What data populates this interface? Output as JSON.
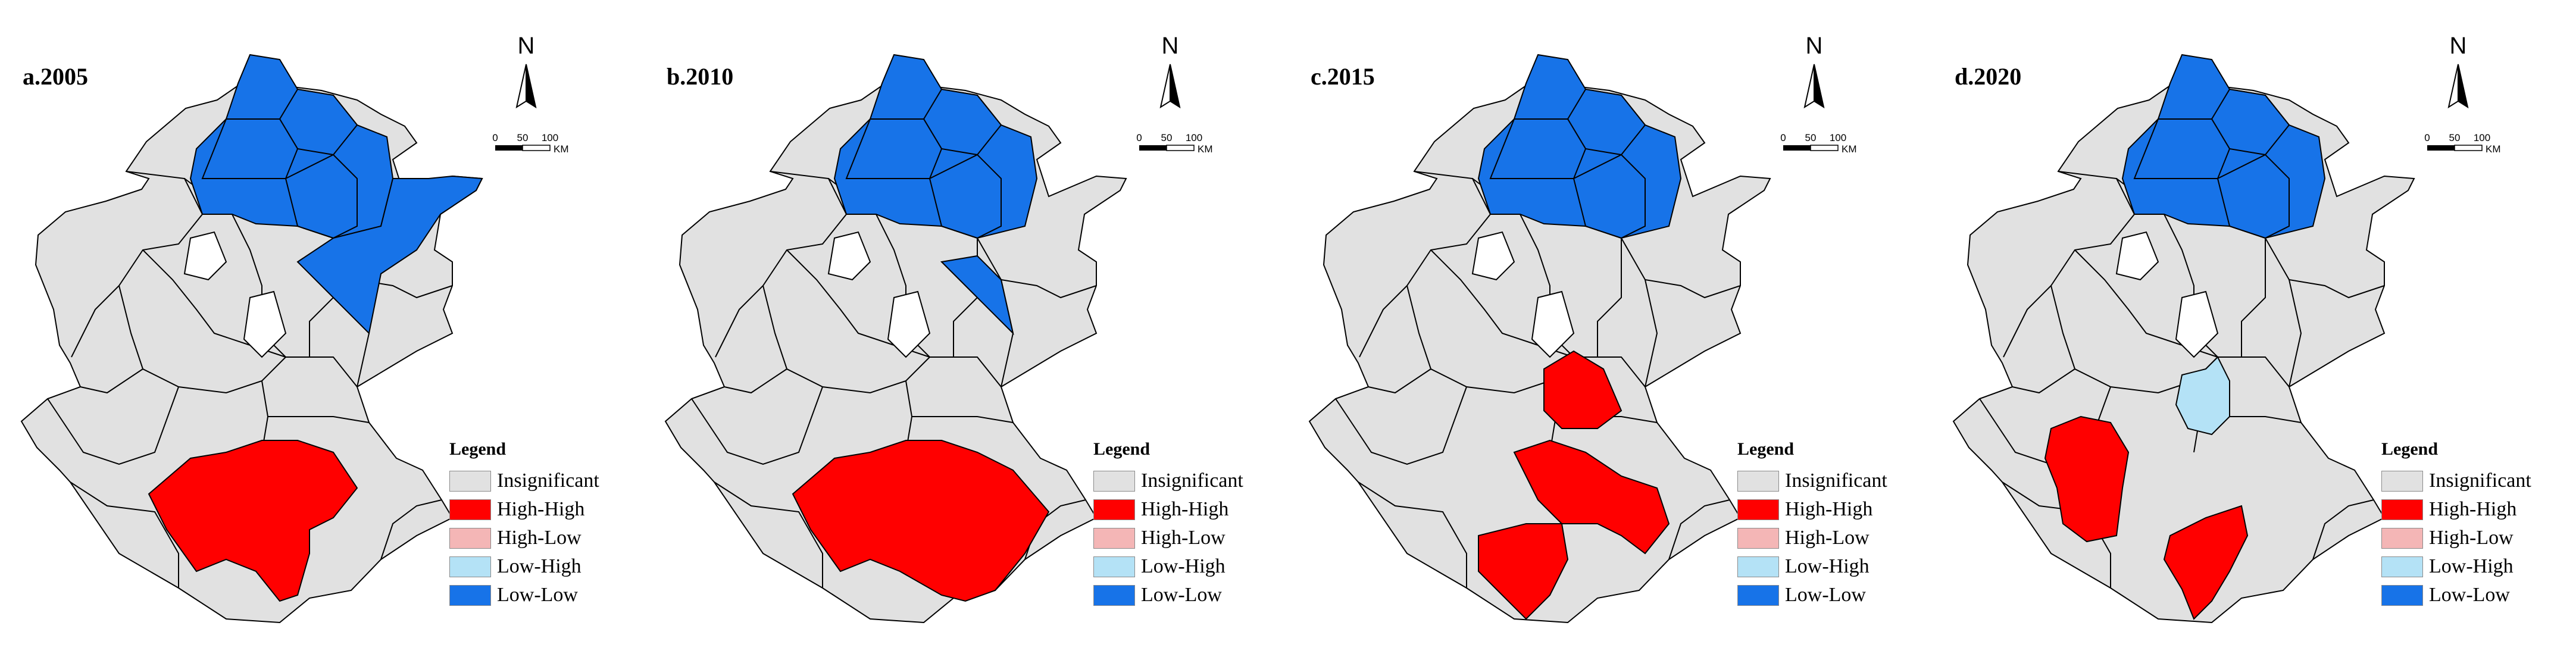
{
  "colors": {
    "insignificant": "#e1e1e1",
    "insignificant_light": "#f1f1f1",
    "high_high": "#ff0000",
    "high_low": "#f4b6b6",
    "low_high": "#b4e2f6",
    "low_low": "#1773e8",
    "border": "#000000"
  },
  "panels": [
    {
      "title": "a.2005"
    },
    {
      "title": "b.2010"
    },
    {
      "title": "c.2015"
    },
    {
      "title": "d.2020"
    }
  ],
  "north_arrow": {
    "label": "N"
  },
  "scale_bar": {
    "ticks": [
      "0",
      "50",
      "100"
    ],
    "unit": "KM"
  },
  "legend": {
    "title": "Legend",
    "items": [
      {
        "label": "Insignificant",
        "color": "#e1e1e1"
      },
      {
        "label": "High-High",
        "color": "#ff0000"
      },
      {
        "label": "High-Low",
        "color": "#f4b6b6"
      },
      {
        "label": "Low-High",
        "color": "#b4e2f6"
      },
      {
        "label": "Low-Low",
        "color": "#1773e8"
      }
    ]
  }
}
